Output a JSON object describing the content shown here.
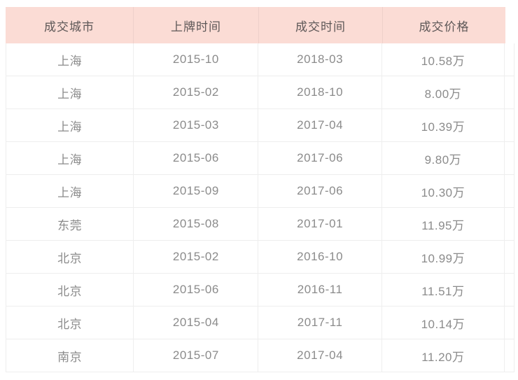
{
  "chart_data": {
    "type": "table",
    "columns": [
      "成交城市",
      "上牌时间",
      "成交时间",
      "成交价格"
    ],
    "rows": [
      [
        "上海",
        "2015-10",
        "2018-03",
        "10.58万"
      ],
      [
        "上海",
        "2015-02",
        "2018-10",
        "8.00万"
      ],
      [
        "上海",
        "2015-03",
        "2017-04",
        "10.39万"
      ],
      [
        "上海",
        "2015-06",
        "2017-06",
        "9.80万"
      ],
      [
        "上海",
        "2015-09",
        "2017-06",
        "10.30万"
      ],
      [
        "东莞",
        "2015-08",
        "2017-01",
        "11.95万"
      ],
      [
        "北京",
        "2015-02",
        "2016-10",
        "10.99万"
      ],
      [
        "北京",
        "2015-06",
        "2016-11",
        "11.51万"
      ],
      [
        "北京",
        "2015-04",
        "2017-11",
        "10.14万"
      ],
      [
        "南京",
        "2015-07",
        "2017-04",
        "11.20万"
      ]
    ]
  },
  "colors": {
    "page_bg": "#ffffff",
    "header_bg": "#fbdcd5",
    "header_text": "#5e5858",
    "body_text": "#8b8b8b",
    "grid_line": "#eeeeee"
  }
}
